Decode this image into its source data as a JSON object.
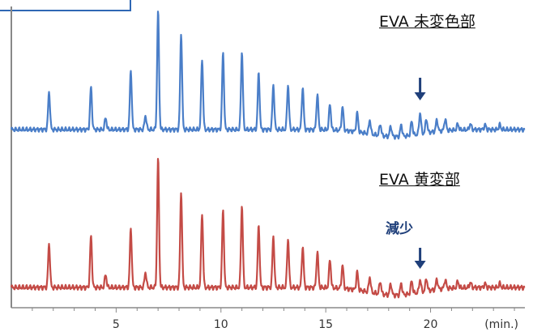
{
  "chart_data": {
    "type": "line",
    "x_unit": "(min.)",
    "xlim": [
      0,
      24.5
    ],
    "xticks": [
      5,
      10,
      15,
      20
    ],
    "series": [
      {
        "name": "EVA 未変色部",
        "color": "#4a7ec8",
        "baseline": 0,
        "peaks": [
          [
            1.8,
            0.32
          ],
          [
            3.8,
            0.36
          ],
          [
            4.5,
            0.1
          ],
          [
            5.7,
            0.5
          ],
          [
            6.4,
            0.12
          ],
          [
            7.0,
            1.0
          ],
          [
            8.1,
            0.82
          ],
          [
            9.1,
            0.6
          ],
          [
            10.1,
            0.65
          ],
          [
            11.0,
            0.66
          ],
          [
            11.8,
            0.48
          ],
          [
            12.5,
            0.38
          ],
          [
            13.2,
            0.38
          ],
          [
            13.9,
            0.36
          ],
          [
            14.6,
            0.3
          ],
          [
            15.2,
            0.22
          ],
          [
            15.8,
            0.2
          ],
          [
            16.5,
            0.16
          ],
          [
            17.1,
            0.12
          ],
          [
            17.6,
            0.1
          ],
          [
            18.1,
            0.09
          ],
          [
            18.6,
            0.1
          ],
          [
            19.1,
            0.12
          ],
          [
            19.5,
            0.18
          ],
          [
            19.8,
            0.12
          ],
          [
            20.3,
            0.1
          ],
          [
            20.7,
            0.1
          ],
          [
            21.3,
            0.05
          ],
          [
            21.9,
            0.05
          ],
          [
            22.6,
            0.04
          ],
          [
            23.3,
            0.04
          ]
        ]
      },
      {
        "name": "EVA 黄変部",
        "color": "#c44b46",
        "baseline": 0,
        "peaks": [
          [
            1.8,
            0.34
          ],
          [
            3.8,
            0.4
          ],
          [
            4.5,
            0.1
          ],
          [
            5.7,
            0.46
          ],
          [
            6.4,
            0.12
          ],
          [
            7.0,
            1.0
          ],
          [
            8.1,
            0.75
          ],
          [
            9.1,
            0.58
          ],
          [
            10.1,
            0.6
          ],
          [
            11.0,
            0.64
          ],
          [
            11.8,
            0.48
          ],
          [
            12.5,
            0.4
          ],
          [
            13.2,
            0.38
          ],
          [
            13.9,
            0.32
          ],
          [
            14.6,
            0.28
          ],
          [
            15.2,
            0.22
          ],
          [
            15.8,
            0.18
          ],
          [
            16.5,
            0.14
          ],
          [
            17.1,
            0.12
          ],
          [
            17.6,
            0.1
          ],
          [
            18.1,
            0.09
          ],
          [
            18.6,
            0.09
          ],
          [
            19.1,
            0.1
          ],
          [
            19.5,
            0.1
          ],
          [
            19.8,
            0.1
          ],
          [
            20.3,
            0.08
          ],
          [
            20.7,
            0.07
          ],
          [
            21.3,
            0.05
          ],
          [
            21.9,
            0.04
          ],
          [
            22.6,
            0.03
          ],
          [
            23.3,
            0.03
          ]
        ]
      }
    ],
    "annotations": {
      "arrow_x": 19.5,
      "note_text": "減少"
    }
  }
}
